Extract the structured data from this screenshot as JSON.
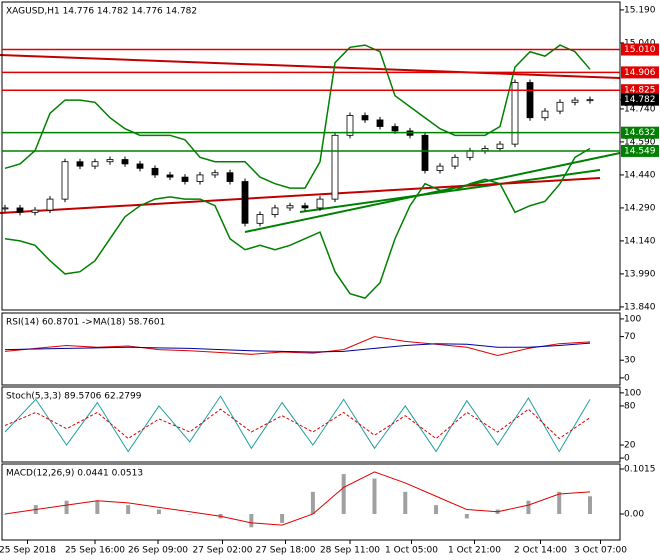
{
  "chart_data": [
    {
      "type": "candlestick",
      "title": "XAGUSD,H1  14.776 14.782 14.776 14.782",
      "values": [
        14.29,
        14.27,
        14.28,
        14.33,
        14.5,
        14.48,
        14.5,
        14.51,
        14.49,
        14.47,
        14.44,
        14.43,
        14.41,
        14.44,
        14.45,
        14.41,
        14.22,
        14.26,
        14.29,
        14.3,
        14.29,
        14.33,
        14.62,
        14.71,
        14.69,
        14.66,
        14.64,
        14.62,
        14.46,
        14.48,
        14.52,
        14.55,
        14.56,
        14.58,
        14.86,
        14.7,
        14.73,
        14.77,
        14.78,
        14.782
      ],
      "bands": {
        "color": "#008000",
        "upper": [
          14.47,
          14.49,
          14.55,
          14.72,
          14.78,
          14.78,
          14.77,
          14.7,
          14.65,
          14.62,
          14.62,
          14.62,
          14.6,
          14.52,
          14.5,
          14.5,
          14.5,
          14.43,
          14.4,
          14.38,
          14.38,
          14.5,
          14.95,
          15.02,
          15.03,
          15.0,
          14.8,
          14.75,
          14.7,
          14.65,
          14.62,
          14.62,
          14.62,
          14.66,
          14.93,
          15.0,
          14.98,
          15.03,
          15.0,
          14.92
        ],
        "lower": [
          14.15,
          14.14,
          14.12,
          14.05,
          13.99,
          14.0,
          14.05,
          14.15,
          14.25,
          14.3,
          14.33,
          14.34,
          14.33,
          14.33,
          14.3,
          14.15,
          14.1,
          14.12,
          14.1,
          14.12,
          14.15,
          14.18,
          14.0,
          13.9,
          13.88,
          13.95,
          14.15,
          14.3,
          14.4,
          14.37,
          14.37,
          14.4,
          14.42,
          14.4,
          14.27,
          14.3,
          14.32,
          14.4,
          14.52,
          14.56
        ]
      },
      "levels": [
        {
          "value": 15.01,
          "label": "15.010",
          "color": "#e00000"
        },
        {
          "value": 14.906,
          "label": "14.906",
          "color": "#e00000"
        },
        {
          "value": 14.825,
          "label": "14.825",
          "color": "#e00000"
        },
        {
          "value": 14.632,
          "label": "14.632",
          "color": "#008000"
        },
        {
          "value": 14.549,
          "label": "14.549",
          "color": "#008000"
        },
        {
          "value": 14.782,
          "label": "14.782",
          "color": "#000000"
        }
      ],
      "ylim": [
        13.826,
        15.226
      ],
      "yticks": [
        {
          "value": 15.19,
          "label": "15.190"
        },
        {
          "value": 15.04,
          "label": "15.040"
        },
        {
          "value": 14.74,
          "label": "14.740"
        },
        {
          "value": 14.59,
          "label": "14.590"
        },
        {
          "value": 14.44,
          "label": "14.440"
        },
        {
          "value": 14.29,
          "label": "14.290"
        },
        {
          "value": 14.14,
          "label": "14.140"
        },
        {
          "value": 13.99,
          "label": "13.990"
        },
        {
          "value": 13.84,
          "label": "13.840"
        }
      ],
      "xticks": [
        {
          "value": 1.5,
          "label": "25 Sep 2018"
        },
        {
          "value": 6,
          "label": "25 Sep 16:00"
        },
        {
          "value": 10.2,
          "label": "26 Sep 09:00"
        },
        {
          "value": 14.5,
          "label": "27 Sep 02:00"
        },
        {
          "value": 18.7,
          "label": "27 Sep 18:00"
        },
        {
          "value": 23,
          "label": "28 Sep 11:00"
        },
        {
          "value": 27.1,
          "label": "1 Oct 05:00"
        },
        {
          "value": 31.3,
          "label": "1 Oct 21:00"
        },
        {
          "value": 35.7,
          "label": "2 Oct 14:00"
        },
        {
          "value": 39.7,
          "label": "3 Oct 07:00"
        }
      ]
    },
    {
      "type": "line",
      "title": "RSI(14) 60.8701 ->MA(18) 58.7601",
      "ylim": [
        -12,
        110
      ],
      "yticks": [
        100,
        70,
        30,
        0
      ],
      "series": [
        {
          "color": "#e00000",
          "values": [
            45,
            50,
            55,
            52,
            54,
            48,
            46,
            43,
            40,
            44,
            42,
            48,
            70,
            62,
            57,
            52,
            38,
            50,
            58,
            61
          ]
        },
        {
          "color": "#0000a0",
          "values": [
            48,
            49,
            50,
            51,
            52,
            51,
            50,
            48,
            46,
            45,
            44,
            45,
            50,
            55,
            58,
            57,
            52,
            52,
            55,
            59
          ]
        }
      ]
    },
    {
      "type": "line",
      "title": "Stoch(5,3,3) 89.5706 62.2799",
      "ylim": [
        -6,
        109
      ],
      "yticks": [
        100,
        80,
        20,
        0
      ],
      "series": [
        {
          "color": "#20a0a0",
          "values": [
            40,
            90,
            20,
            85,
            10,
            80,
            25,
            95,
            15,
            85,
            20,
            90,
            15,
            80,
            10,
            88,
            20,
            92,
            10,
            90
          ]
        },
        {
          "color": "#e00000",
          "dash": true,
          "values": [
            50,
            70,
            45,
            70,
            30,
            60,
            40,
            75,
            40,
            65,
            40,
            70,
            35,
            65,
            30,
            70,
            40,
            75,
            30,
            62
          ]
        }
      ]
    },
    {
      "type": "macd",
      "title": "MACD(12,26,9) 0.0441 0.0513",
      "ylim": [
        -0.0587,
        0.1128
      ],
      "yticks": [
        {
          "value": 0.1015,
          "label": "0.1015"
        },
        {
          "value": 0,
          "label": "0.00"
        }
      ],
      "histogram": {
        "color": "#a0a0a0",
        "values": [
          0,
          0.02,
          0.03,
          0.03,
          0.02,
          0.01,
          0.0,
          -0.01,
          -0.03,
          -0.02,
          0.05,
          0.09,
          0.08,
          0.05,
          0.02,
          -0.01,
          0.01,
          0.03,
          0.05,
          0.04
        ]
      },
      "signal": {
        "color": "#e00000",
        "values": [
          0.0,
          0.01,
          0.02,
          0.03,
          0.025,
          0.015,
          0.005,
          -0.005,
          -0.02,
          -0.025,
          0.0,
          0.06,
          0.095,
          0.07,
          0.04,
          0.01,
          0.005,
          0.02,
          0.045,
          0.05
        ]
      }
    }
  ]
}
